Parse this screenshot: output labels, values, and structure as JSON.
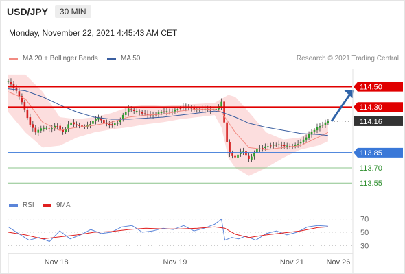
{
  "header": {
    "symbol": "USD/JPY",
    "timeframe": "30 MIN",
    "timestamp": "Monday, November 22, 2021 4:45:43 AM CET"
  },
  "legend": {
    "items": [
      {
        "label": "MA 20 + Bollinger Bands",
        "color": "#f28b82"
      },
      {
        "label": "MA 50",
        "color": "#3b5fa0"
      }
    ],
    "credit": "Research © 2021 Trading Central"
  },
  "rsi_legend": {
    "items": [
      {
        "label": "RSI",
        "color": "#5b85d9"
      },
      {
        "label": "9MA",
        "color": "#e02020"
      }
    ]
  },
  "colors": {
    "resistance": "#e00000",
    "support": "#3a78d8",
    "target": "#8bc48b",
    "target_text": "#2f8f2f",
    "last_price": "#333333",
    "candle_up": "#2e9e2e",
    "candle_down": "#d42020",
    "band_fill": "#fbd3d3",
    "arrow": "#2f63a8"
  },
  "chart_data": [
    {
      "type": "candlestick",
      "ylim": [
        113.45,
        114.68
      ],
      "xlim": [
        0,
        100
      ],
      "x_ticks": [
        {
          "label": "Nov 18",
          "x": 14
        },
        {
          "label": "Nov 19",
          "x": 48.5
        },
        {
          "label": "Nov 21",
          "x": 82.5
        },
        {
          "label": "Nov 26",
          "x": 96
        }
      ],
      "price_path": {
        "x": [
          0,
          2,
          4,
          6,
          8,
          10,
          12,
          14,
          16,
          18,
          20,
          22,
          24,
          26,
          28,
          30,
          32,
          34,
          35,
          37,
          39,
          41,
          43,
          45,
          47,
          49,
          51,
          53,
          55,
          57,
          59,
          61,
          62,
          63,
          64,
          66,
          68,
          70,
          71,
          72,
          74,
          76,
          78,
          80,
          82,
          84,
          86,
          88,
          90,
          92,
          93
        ],
        "y": [
          114.55,
          114.48,
          114.35,
          114.15,
          114.05,
          114.1,
          114.08,
          114.12,
          114.05,
          114.15,
          114.12,
          114.1,
          114.14,
          114.2,
          114.14,
          114.12,
          114.15,
          114.25,
          114.28,
          114.26,
          114.24,
          114.22,
          114.23,
          114.26,
          114.25,
          114.28,
          114.3,
          114.29,
          114.27,
          114.28,
          114.27,
          114.29,
          114.35,
          114.1,
          113.85,
          113.8,
          113.88,
          113.78,
          113.82,
          113.88,
          113.9,
          113.92,
          113.93,
          113.92,
          113.91,
          113.93,
          113.98,
          114.05,
          114.1,
          114.14,
          114.16
        ]
      },
      "ma20": {
        "x": [
          0,
          5,
          10,
          15,
          20,
          25,
          30,
          35,
          40,
          45,
          50,
          55,
          60,
          62,
          66,
          70,
          75,
          80,
          85,
          90,
          93
        ],
        "y": [
          114.45,
          114.38,
          114.15,
          114.07,
          114.1,
          114.12,
          114.15,
          114.2,
          114.22,
          114.23,
          114.26,
          114.28,
          114.28,
          114.25,
          114.05,
          113.9,
          113.88,
          113.9,
          113.92,
          114.0,
          114.05
        ]
      },
      "ma50": {
        "x": [
          0,
          5,
          10,
          15,
          20,
          25,
          30,
          35,
          40,
          45,
          50,
          55,
          60,
          62,
          66,
          70,
          75,
          80,
          85,
          90,
          93
        ],
        "y": [
          114.48,
          114.46,
          114.4,
          114.32,
          114.25,
          114.2,
          114.18,
          114.18,
          114.19,
          114.2,
          114.22,
          114.24,
          114.26,
          114.25,
          114.2,
          114.14,
          114.1,
          114.07,
          114.04,
          114.03,
          114.02
        ]
      },
      "bollinger": {
        "x": [
          0,
          5,
          10,
          15,
          20,
          25,
          30,
          35,
          40,
          45,
          50,
          55,
          60,
          62,
          64,
          66,
          70,
          75,
          80,
          85,
          90,
          93
        ],
        "upper": [
          114.62,
          114.62,
          114.45,
          114.2,
          114.18,
          114.2,
          114.24,
          114.3,
          114.32,
          114.31,
          114.32,
          114.33,
          114.34,
          114.38,
          114.42,
          114.4,
          114.25,
          114.05,
          113.98,
          114.0,
          114.1,
          114.16
        ],
        "lower": [
          114.25,
          114.05,
          113.9,
          113.92,
          114.0,
          114.05,
          114.08,
          114.1,
          114.13,
          114.15,
          114.18,
          114.2,
          114.22,
          114.1,
          113.8,
          113.7,
          113.62,
          113.7,
          113.8,
          113.88,
          113.92,
          113.96
        ]
      },
      "levels": [
        {
          "label": "114.50",
          "value": 114.5,
          "kind": "resistance"
        },
        {
          "label": "114.30",
          "value": 114.3,
          "kind": "resistance"
        },
        {
          "label": "114.16",
          "value": 114.16,
          "kind": "last"
        },
        {
          "label": "113.85",
          "value": 113.85,
          "kind": "support"
        },
        {
          "label": "113.70",
          "value": 113.7,
          "kind": "target"
        },
        {
          "label": "113.55",
          "value": 113.55,
          "kind": "target"
        }
      ],
      "forecast_arrow": {
        "from": [
          94,
          114.16
        ],
        "to": [
          100.5,
          114.47
        ]
      }
    },
    {
      "type": "line",
      "ylim": [
        20,
        80
      ],
      "y_ticks": [
        70,
        50,
        30
      ],
      "grid": "dotted",
      "series": [
        {
          "name": "RSI",
          "x": [
            0,
            3,
            6,
            9,
            12,
            15,
            18,
            21,
            24,
            27,
            30,
            33,
            36,
            39,
            42,
            45,
            48,
            51,
            54,
            57,
            60,
            62,
            63,
            65,
            67,
            69,
            72,
            75,
            78,
            81,
            84,
            87,
            90,
            93
          ],
          "y": [
            58,
            48,
            38,
            42,
            36,
            52,
            40,
            46,
            54,
            48,
            50,
            58,
            60,
            50,
            52,
            56,
            54,
            60,
            52,
            56,
            62,
            70,
            38,
            42,
            40,
            44,
            38,
            48,
            52,
            46,
            50,
            58,
            60,
            59
          ]
        },
        {
          "name": "9MA",
          "x": [
            0,
            5,
            10,
            15,
            20,
            25,
            30,
            35,
            40,
            45,
            50,
            55,
            60,
            63,
            66,
            70,
            75,
            80,
            85,
            90,
            93
          ],
          "y": [
            50,
            46,
            40,
            43,
            46,
            50,
            51,
            54,
            56,
            55,
            55,
            56,
            58,
            56,
            47,
            42,
            46,
            49,
            52,
            57,
            58
          ]
        }
      ]
    }
  ]
}
